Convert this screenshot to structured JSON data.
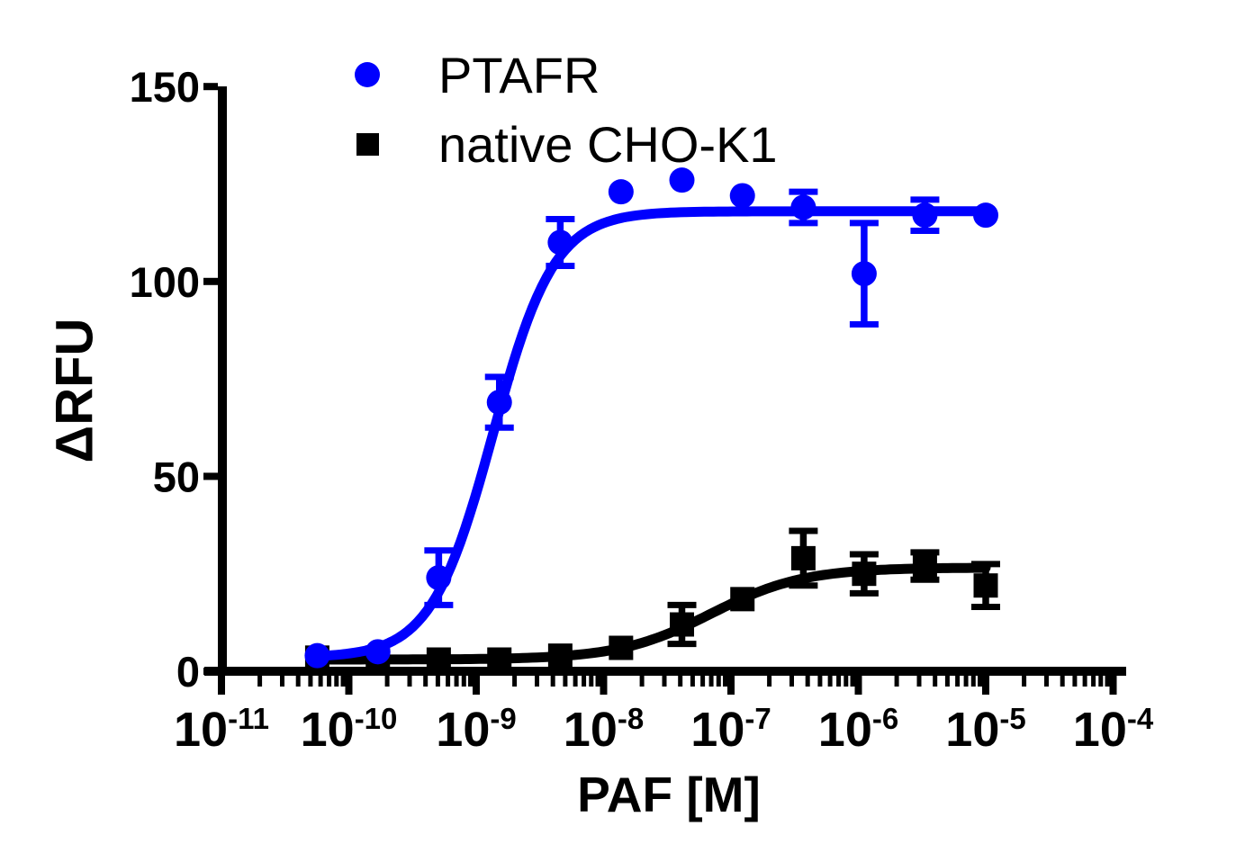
{
  "chart_data": {
    "type": "scatter",
    "title": "",
    "xlabel": "PAF [M]",
    "ylabel": "ΔRFU",
    "x_scale": "log10",
    "x_tick_base": "10",
    "x_tick_exponents": [
      -11,
      -10,
      -9,
      -8,
      -7,
      -6,
      -5,
      -4
    ],
    "y_ticks": [
      0,
      50,
      100,
      150
    ],
    "ylim": [
      0,
      150
    ],
    "xlim": [
      1e-11,
      0.0001
    ],
    "grid": false,
    "legend_position": "top-left-inside",
    "axis_color": "#000000",
    "series": [
      {
        "name": "PTAFR",
        "color": "#0000fe",
        "marker": "circle",
        "x": [
          5.65e-11,
          1.69e-10,
          5.08e-10,
          1.52e-09,
          4.57e-09,
          1.37e-08,
          4.12e-08,
          1.23e-07,
          3.7e-07,
          1.11e-06,
          3.33e-06,
          1e-05
        ],
        "y": [
          4,
          5,
          24,
          69,
          110,
          123,
          126,
          122,
          119,
          102,
          117,
          117
        ],
        "yerr": [
          1.5,
          2,
          7,
          6.5,
          6,
          3.5,
          3.5,
          2,
          4,
          13,
          4,
          1.5
        ],
        "fit": {
          "model": "4PL",
          "bottom": 3.5,
          "top": 118,
          "ec50": 1.35e-09,
          "hill": 1.8
        }
      },
      {
        "name": "native CHO-K1",
        "color": "#000000",
        "marker": "square",
        "x": [
          5.65e-11,
          1.69e-10,
          5.08e-10,
          1.52e-09,
          4.57e-09,
          1.37e-08,
          4.12e-08,
          1.23e-07,
          3.7e-07,
          1.11e-06,
          3.33e-06,
          1e-05
        ],
        "y": [
          3.5,
          3.5,
          3,
          3,
          4,
          6,
          12,
          18.5,
          29,
          25,
          27,
          22
        ],
        "yerr": [
          1,
          1,
          1,
          1,
          1.5,
          2,
          5,
          3,
          7,
          5,
          3.5,
          5.5
        ],
        "fit": {
          "model": "4PL",
          "bottom": 3.0,
          "top": 26.6,
          "ec50": 7e-08,
          "hill": 1.2
        }
      }
    ]
  }
}
